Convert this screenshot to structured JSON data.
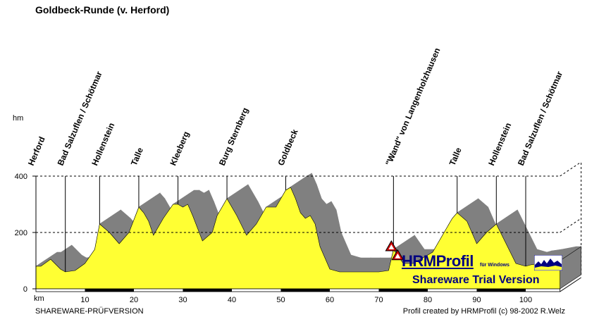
{
  "title": "Goldbeck-Runde (v. Herford)",
  "y_unit": "hm",
  "x_unit": "km",
  "footer_left": "SHAREWARE-PRÜFVERSION",
  "footer_right": "Profil created by HRMProfil (c) 98-2002 R.Welz",
  "colors": {
    "profile": "#ffff33",
    "shadow": "#808080",
    "axis_bar": "#000000",
    "brand": "#000080",
    "warning": "#cc0000"
  },
  "badge": {
    "name": "HRMProfil",
    "sub": "für Windows",
    "trial": "Shareware Trial  Version"
  },
  "chart_data": {
    "type": "area",
    "xlabel": "km",
    "ylabel": "hm",
    "xlim": [
      0,
      107
    ],
    "ylim": [
      0,
      400
    ],
    "xticks": [
      0,
      10,
      20,
      30,
      40,
      50,
      60,
      70,
      80,
      90,
      100
    ],
    "yticks": [
      0,
      200,
      400
    ],
    "series": [
      {
        "x": [
          0,
          1,
          3,
          5,
          6,
          8,
          10,
          12,
          13,
          15,
          17,
          19,
          21,
          22,
          23,
          24,
          26,
          28,
          29,
          30,
          31,
          32,
          34,
          36,
          37,
          39,
          41,
          43,
          45,
          47,
          49,
          51,
          52,
          53,
          54,
          55,
          56,
          57,
          58,
          60,
          62,
          64,
          66,
          68,
          70,
          72,
          73,
          75,
          77,
          79,
          81,
          83,
          85,
          86,
          88,
          90,
          92,
          94,
          96,
          98,
          100,
          101,
          103,
          106,
          107
        ],
        "y": [
          80,
          80,
          105,
          70,
          60,
          65,
          90,
          140,
          230,
          200,
          160,
          200,
          290,
          270,
          240,
          190,
          250,
          300,
          300,
          290,
          300,
          260,
          170,
          200,
          260,
          320,
          260,
          190,
          230,
          290,
          290,
          350,
          360,
          320,
          270,
          250,
          260,
          230,
          150,
          70,
          60,
          60,
          60,
          60,
          60,
          65,
          140,
          90,
          90,
          110,
          130,
          190,
          250,
          270,
          240,
          160,
          200,
          230,
          160,
          90,
          80,
          85,
          90,
          100,
          100
        ]
      }
    ],
    "waypoints": [
      {
        "km": 0,
        "name": "Herford"
      },
      {
        "km": 6,
        "name": "Bad Salzuflen / Schötmar"
      },
      {
        "km": 13,
        "name": "Hollenstein"
      },
      {
        "km": 21,
        "name": "Talle"
      },
      {
        "km": 29,
        "name": "Kleeberg"
      },
      {
        "km": 39,
        "name": "Burg Sternberg"
      },
      {
        "km": 51,
        "name": "Goldbeck"
      },
      {
        "km": 73,
        "name": "\"Wand\" von Langenholzhausen"
      },
      {
        "km": 86,
        "name": "Talle"
      },
      {
        "km": 94,
        "name": "Hollenstein"
      },
      {
        "km": 100,
        "name": "Bad Salzuflen / Schötmar"
      }
    ],
    "grid": true
  }
}
